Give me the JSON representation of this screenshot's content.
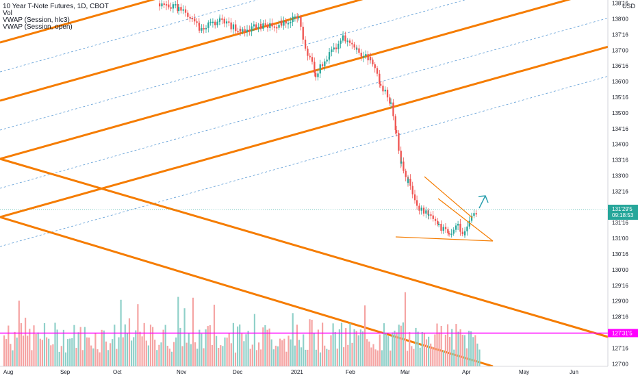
{
  "header": {
    "title": "10 Year T-Note Futures, 1D, CBOT",
    "indicators": [
      "Vol",
      "VWAP (Session, hlc3)",
      "VWAP (Session, open)"
    ],
    "currency": "USD"
  },
  "price_axis": {
    "ticks": [
      "138'16",
      "138'00",
      "137'16",
      "137'00",
      "136'16",
      "136'00",
      "135'16",
      "135'00",
      "134'16",
      "134'00",
      "133'16",
      "133'00",
      "132'16",
      "131'16",
      "131'00",
      "130'16",
      "130'00",
      "129'16",
      "129'00",
      "128'16",
      "127'16",
      "127'00"
    ],
    "last_price": "131'29'5",
    "countdown": "09:18:53",
    "hline_label": "127'31'5"
  },
  "time_axis": [
    "Aug",
    "Sep",
    "Oct",
    "Nov",
    "Dec",
    "2021",
    "Feb",
    "Mar",
    "Apr",
    "May",
    "Jun"
  ],
  "colors": {
    "up": "#26a69a",
    "down": "#ef5350",
    "vol_up": "#8fd0c9",
    "vol_down": "#f5a4a3",
    "channel": "#f57c00",
    "dashed": "#5b9bd5",
    "hline": "#ff00ff",
    "last_price": "#26a69a",
    "arrow": "#2a9fae"
  },
  "chart_data": {
    "type": "candlestick",
    "title": "10 Year T-Note Futures, 1D, CBOT",
    "y_range": [
      126.92,
      138.6
    ],
    "y_ticks": [
      138.5,
      138,
      137.5,
      137,
      136.5,
      136,
      135.5,
      135,
      134.5,
      134,
      133.5,
      133,
      132.5,
      131.5,
      131,
      130.5,
      130,
      129.5,
      129,
      128.5,
      127.5,
      127
    ],
    "last_price": 131.92,
    "horizontal_line": 127.98,
    "x_labels": [
      "Aug",
      "Sep",
      "Oct",
      "Nov",
      "Dec",
      "2021",
      "Feb",
      "Mar",
      "Apr",
      "May",
      "Jun"
    ],
    "grid": false,
    "volume": true
  }
}
